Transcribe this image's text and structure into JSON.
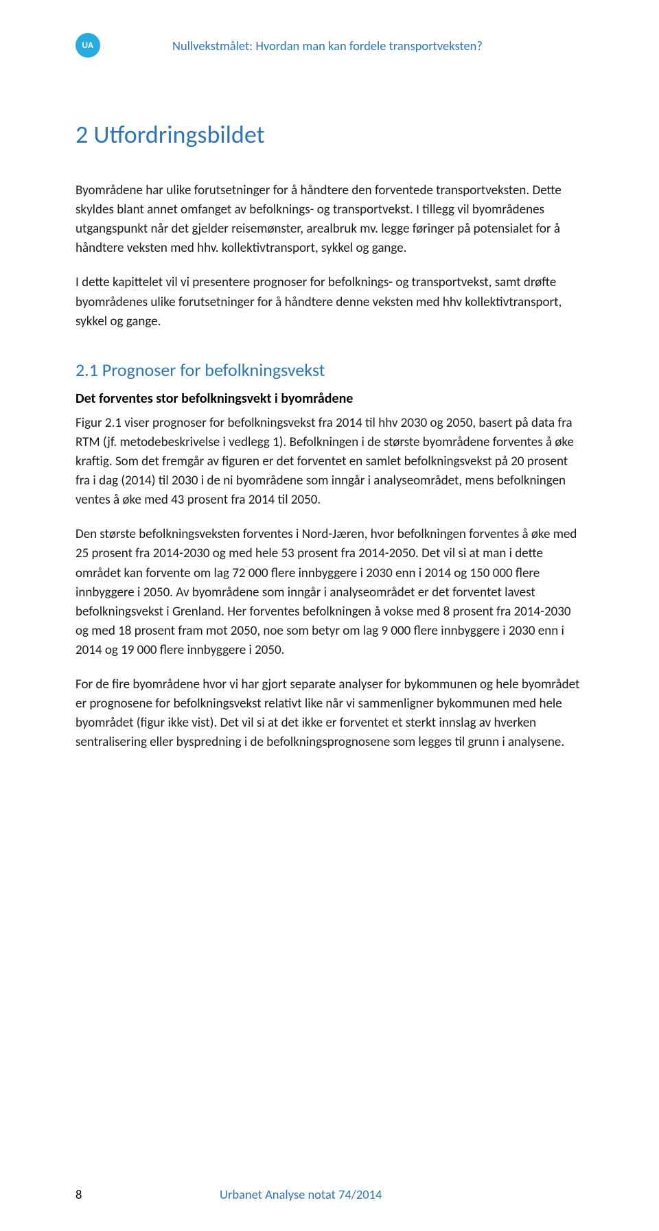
{
  "colors": {
    "accent": "#2e75b6",
    "badge_bg": "#29abe2",
    "badge_fg": "#ffffff",
    "body_text": "#1a1a1a",
    "background": "#ffffff"
  },
  "typography": {
    "body_font": "Calibri",
    "body_size_pt": 14,
    "h1_size_pt": 27,
    "h2_size_pt": 19,
    "h3_size_pt": 15,
    "line_height": 1.48
  },
  "header": {
    "badge": "UA",
    "running_title": "Nullvekstmålet: Hvordan man kan fordele transportveksten?"
  },
  "h1": "2  Utfordringsbildet",
  "para1": "Byområdene har ulike forutsetninger for å håndtere den forventede transportveksten. Dette skyldes blant annet omfanget av befolknings- og transportvekst. I tillegg vil byområdenes utgangspunkt når det gjelder reisemønster, arealbruk mv. legge føringer på potensialet for å håndtere veksten med hhv. kollektivtransport, sykkel og gange.",
  "para2": "I dette kapittelet vil vi presentere prognoser for befolknings- og transportvekst, samt drøfte byområdenes ulike forutsetninger for å håndtere denne veksten med hhv kollektivtransport, sykkel og gange.",
  "h2": "2.1   Prognoser for befolkningsvekst",
  "h3": "Det forventes stor befolkningsvekt i byområdene",
  "para3": "Figur 2.1 viser prognoser for befolkningsvekst fra 2014 til hhv 2030 og 2050, basert på data fra RTM (jf. metodebeskrivelse i vedlegg 1). Befolkningen i de største byområdene forventes å øke kraftig. Som det fremgår av figuren er det forventet en samlet befolkningsvekst på 20 prosent fra i dag (2014) til 2030 i de ni byområdene som inngår i analyseområdet, mens befolkningen ventes å øke med 43 prosent fra 2014 til 2050.",
  "para4": "Den største befolkningsveksten forventes i Nord-Jæren, hvor befolkningen forventes å øke med 25 prosent fra 2014-2030 og med hele 53 prosent fra 2014-2050. Det vil si at man i dette området kan forvente om lag 72 000 flere innbyggere i 2030 enn i 2014 og 150 000 flere innbyggere i 2050. Av byområdene som inngår i analyseområdet er det forventet lavest befolkningsvekst i Grenland. Her forventes befolkningen å vokse med 8 prosent fra 2014-2030 og med 18 prosent fram mot 2050, noe som betyr om lag 9 000 flere innbyggere i 2030 enn i 2014 og 19 000 flere innbyggere i 2050.",
  "para5": "For de fire byområdene hvor vi har gjort separate analyser for bykommunen og hele byområdet er prognosene for befolkningsvekst relativt like når vi sammenligner bykommunen med hele byområdet (figur ikke vist). Det vil si at det ikke er forventet et sterkt innslag av hverken sentralisering eller byspredning i de befolkningsprognosene som legges til grunn i analysene.",
  "footer": {
    "page_no": "8",
    "text": "Urbanet Analyse notat 74/2014"
  }
}
